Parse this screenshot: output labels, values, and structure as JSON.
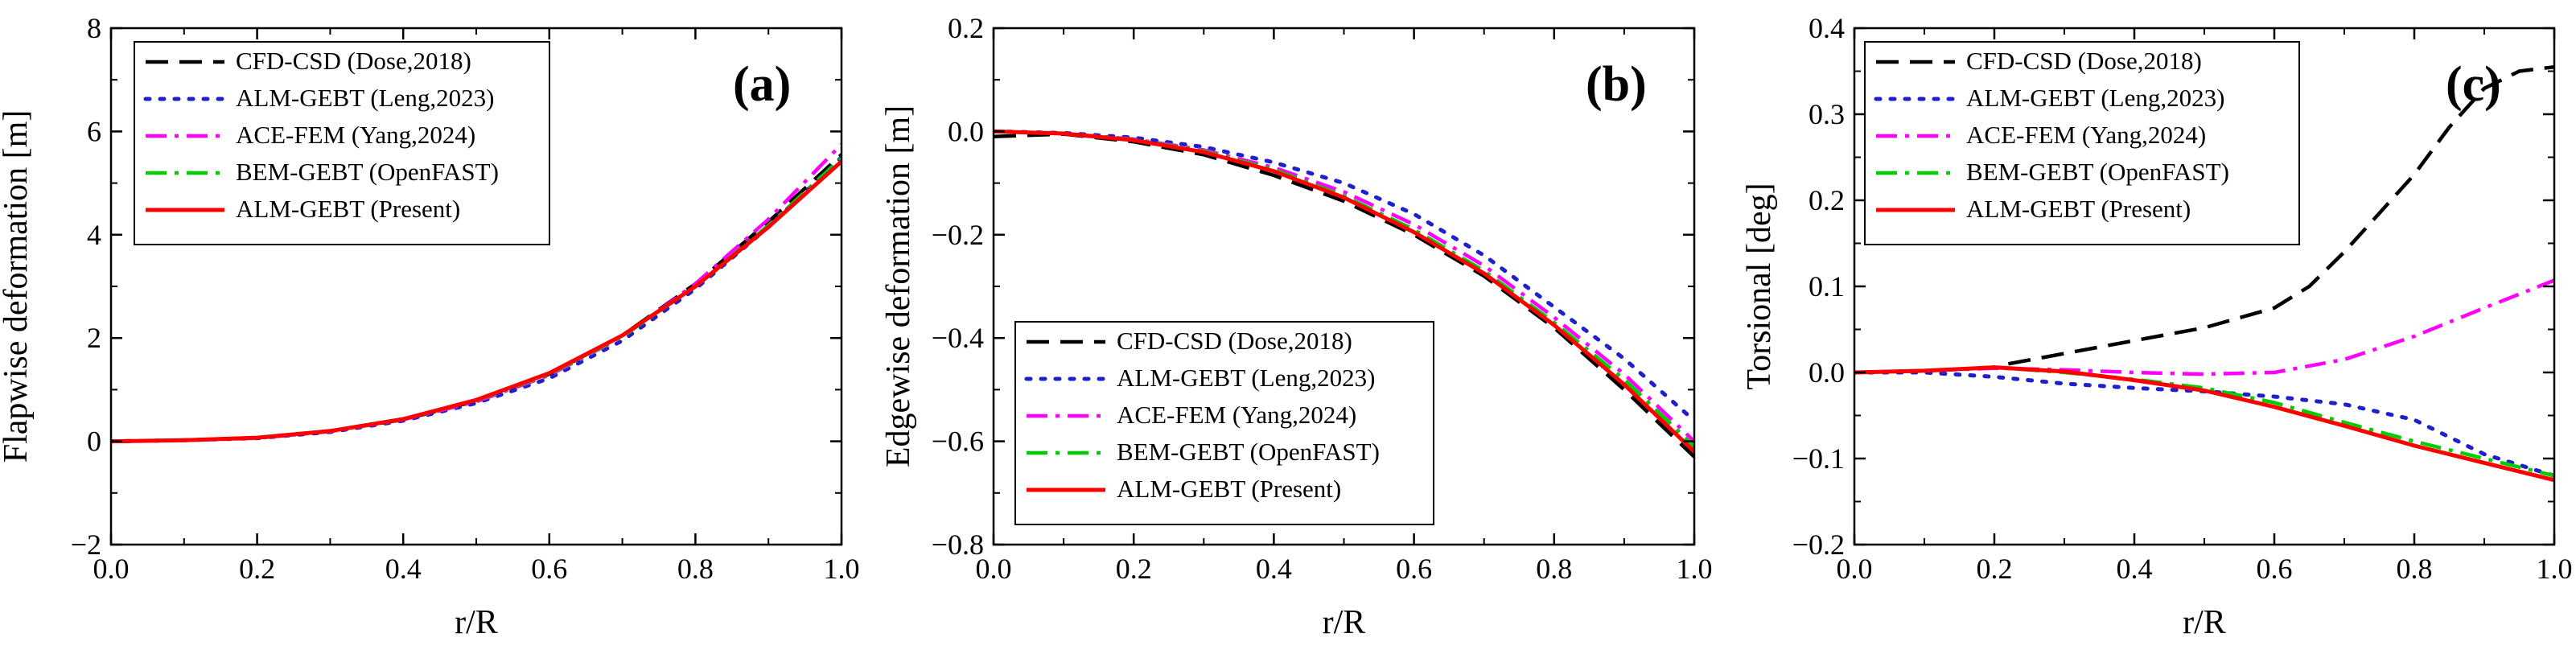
{
  "chart_data": [
    {
      "type": "line",
      "panel_label": "(a)",
      "xlabel": "r/R",
      "ylabel": "Flapwise deformation [m]",
      "xlim": [
        0,
        1
      ],
      "ylim": [
        -2,
        8
      ],
      "xticks": [
        "0.0",
        "0.2",
        "0.4",
        "0.6",
        "0.8",
        "1.0"
      ],
      "yticks": [
        "−2",
        "0",
        "2",
        "4",
        "6",
        "8"
      ],
      "legend_position": "top-left",
      "series": [
        {
          "name": "CFD-CSD (Dose,2018)",
          "color": "#000000",
          "style": "dash",
          "x": [
            0,
            0.1,
            0.2,
            0.3,
            0.4,
            0.5,
            0.6,
            0.7,
            0.8,
            0.9,
            1.0
          ],
          "y": [
            0,
            0.02,
            0.07,
            0.2,
            0.42,
            0.78,
            1.3,
            2.05,
            3.05,
            4.25,
            5.55
          ]
        },
        {
          "name": "ALM-GEBT (Leng,2023)",
          "color": "#1f1fcc",
          "style": "dot",
          "x": [
            0,
            0.1,
            0.2,
            0.3,
            0.4,
            0.5,
            0.6,
            0.7,
            0.8,
            0.9,
            1.0
          ],
          "y": [
            0,
            0.02,
            0.06,
            0.18,
            0.4,
            0.74,
            1.22,
            1.95,
            2.95,
            4.15,
            5.5
          ]
        },
        {
          "name": "ACE-FEM (Yang,2024)",
          "color": "#ff00ff",
          "style": "dashdot",
          "x": [
            0,
            0.1,
            0.2,
            0.3,
            0.4,
            0.5,
            0.6,
            0.7,
            0.8,
            0.9,
            1.0
          ],
          "y": [
            0,
            0.02,
            0.06,
            0.19,
            0.42,
            0.77,
            1.28,
            2.02,
            3.05,
            4.3,
            5.75
          ]
        },
        {
          "name": "BEM-GEBT (OpenFAST)",
          "color": "#00cc00",
          "style": "dashdot",
          "x": [
            0,
            0.1,
            0.2,
            0.3,
            0.4,
            0.5,
            0.6,
            0.7,
            0.8,
            0.9,
            1.0
          ],
          "y": [
            0,
            0.02,
            0.07,
            0.2,
            0.43,
            0.79,
            1.3,
            2.03,
            3.0,
            4.18,
            5.48
          ]
        },
        {
          "name": "ALM-GEBT (Present)",
          "color": "#ff0000",
          "style": "solid",
          "x": [
            0,
            0.1,
            0.2,
            0.3,
            0.4,
            0.5,
            0.6,
            0.7,
            0.8,
            0.9,
            1.0
          ],
          "y": [
            0,
            0.02,
            0.07,
            0.2,
            0.43,
            0.8,
            1.32,
            2.05,
            3.0,
            4.15,
            5.42
          ]
        }
      ]
    },
    {
      "type": "line",
      "panel_label": "(b)",
      "xlabel": "r/R",
      "ylabel": "Edgewise deformation [m]",
      "xlim": [
        0,
        1
      ],
      "ylim": [
        -0.8,
        0.2
      ],
      "xticks": [
        "0.0",
        "0.2",
        "0.4",
        "0.6",
        "0.8",
        "1.0"
      ],
      "yticks": [
        "−0.8",
        "−0.6",
        "−0.4",
        "−0.2",
        "0.0",
        "0.2"
      ],
      "legend_position": "bottom-right",
      "series": [
        {
          "name": "CFD-CSD (Dose,2018)",
          "color": "#000000",
          "style": "dash",
          "x": [
            0,
            0.1,
            0.2,
            0.3,
            0.4,
            0.5,
            0.6,
            0.7,
            0.8,
            0.9,
            1.0
          ],
          "y": [
            -0.01,
            -0.005,
            -0.02,
            -0.045,
            -0.085,
            -0.135,
            -0.2,
            -0.28,
            -0.38,
            -0.5,
            -0.63
          ]
        },
        {
          "name": "ALM-GEBT (Leng,2023)",
          "color": "#1f1fcc",
          "style": "dot",
          "x": [
            0,
            0.1,
            0.2,
            0.3,
            0.4,
            0.5,
            0.6,
            0.7,
            0.8,
            0.9,
            1.0
          ],
          "y": [
            0,
            -0.003,
            -0.012,
            -0.03,
            -0.06,
            -0.1,
            -0.16,
            -0.24,
            -0.34,
            -0.44,
            -0.56
          ]
        },
        {
          "name": "ACE-FEM (Yang,2024)",
          "color": "#ff00ff",
          "style": "dashdot",
          "x": [
            0,
            0.1,
            0.2,
            0.3,
            0.4,
            0.5,
            0.6,
            0.7,
            0.8,
            0.9,
            1.0
          ],
          "y": [
            0,
            -0.004,
            -0.015,
            -0.036,
            -0.07,
            -0.117,
            -0.18,
            -0.26,
            -0.36,
            -0.47,
            -0.6
          ]
        },
        {
          "name": "BEM-GEBT (OpenFAST)",
          "color": "#00cc00",
          "style": "dashdot",
          "x": [
            0,
            0.1,
            0.2,
            0.3,
            0.4,
            0.5,
            0.6,
            0.7,
            0.8,
            0.9,
            1.0
          ],
          "y": [
            0,
            -0.004,
            -0.016,
            -0.038,
            -0.074,
            -0.125,
            -0.19,
            -0.27,
            -0.37,
            -0.48,
            -0.61
          ]
        },
        {
          "name": "ALM-GEBT (Present)",
          "color": "#ff0000",
          "style": "solid",
          "x": [
            0,
            0.1,
            0.2,
            0.3,
            0.4,
            0.5,
            0.6,
            0.7,
            0.8,
            0.9,
            1.0
          ],
          "y": [
            0,
            -0.004,
            -0.017,
            -0.04,
            -0.077,
            -0.128,
            -0.195,
            -0.275,
            -0.375,
            -0.49,
            -0.62
          ]
        }
      ]
    },
    {
      "type": "line",
      "panel_label": "(c)",
      "xlabel": "r/R",
      "ylabel": "Torsional [deg]",
      "xlim": [
        0,
        1
      ],
      "ylim": [
        -0.2,
        0.4
      ],
      "xticks": [
        "0.0",
        "0.2",
        "0.4",
        "0.6",
        "0.8",
        "1.0"
      ],
      "yticks": [
        "−0.2",
        "−0.1",
        "0.0",
        "0.1",
        "0.2",
        "0.3",
        "0.4"
      ],
      "legend_position": "top-left",
      "series": [
        {
          "name": "CFD-CSD (Dose,2018)",
          "color": "#000000",
          "style": "dash",
          "x": [
            0.22,
            0.3,
            0.4,
            0.5,
            0.6,
            0.65,
            0.7,
            0.75,
            0.8,
            0.85,
            0.9,
            0.95,
            1.0
          ],
          "y": [
            0.01,
            0.022,
            0.037,
            0.052,
            0.075,
            0.1,
            0.14,
            0.185,
            0.23,
            0.285,
            0.33,
            0.35,
            0.355
          ]
        },
        {
          "name": "ALM-GEBT (Leng,2023)",
          "color": "#1f1fcc",
          "style": "dot",
          "x": [
            0,
            0.1,
            0.2,
            0.3,
            0.4,
            0.5,
            0.6,
            0.7,
            0.8,
            0.85,
            0.9,
            1.0
          ],
          "y": [
            0,
            0,
            -0.005,
            -0.013,
            -0.018,
            -0.022,
            -0.028,
            -0.037,
            -0.055,
            -0.075,
            -0.095,
            -0.12
          ]
        },
        {
          "name": "ACE-FEM (Yang,2024)",
          "color": "#ff00ff",
          "style": "dashdot",
          "x": [
            0,
            0.1,
            0.2,
            0.3,
            0.4,
            0.5,
            0.6,
            0.7,
            0.8,
            0.9,
            1.0
          ],
          "y": [
            0,
            0.002,
            0.005,
            0.003,
            0,
            -0.002,
            0,
            0.015,
            0.042,
            0.075,
            0.107
          ]
        },
        {
          "name": "BEM-GEBT (OpenFAST)",
          "color": "#00cc00",
          "style": "dashdot",
          "x": [
            0,
            0.1,
            0.2,
            0.3,
            0.4,
            0.5,
            0.6,
            0.7,
            0.8,
            0.9,
            1.0
          ],
          "y": [
            0,
            0.002,
            0.006,
            0,
            -0.008,
            -0.018,
            -0.035,
            -0.058,
            -0.08,
            -0.1,
            -0.12
          ]
        },
        {
          "name": "ALM-GEBT (Present)",
          "color": "#ff0000",
          "style": "solid",
          "x": [
            0,
            0.1,
            0.2,
            0.3,
            0.4,
            0.5,
            0.6,
            0.7,
            0.8,
            0.9,
            1.0
          ],
          "y": [
            0,
            0.002,
            0.006,
            0.001,
            -0.009,
            -0.021,
            -0.04,
            -0.062,
            -0.085,
            -0.105,
            -0.125
          ]
        }
      ]
    }
  ]
}
